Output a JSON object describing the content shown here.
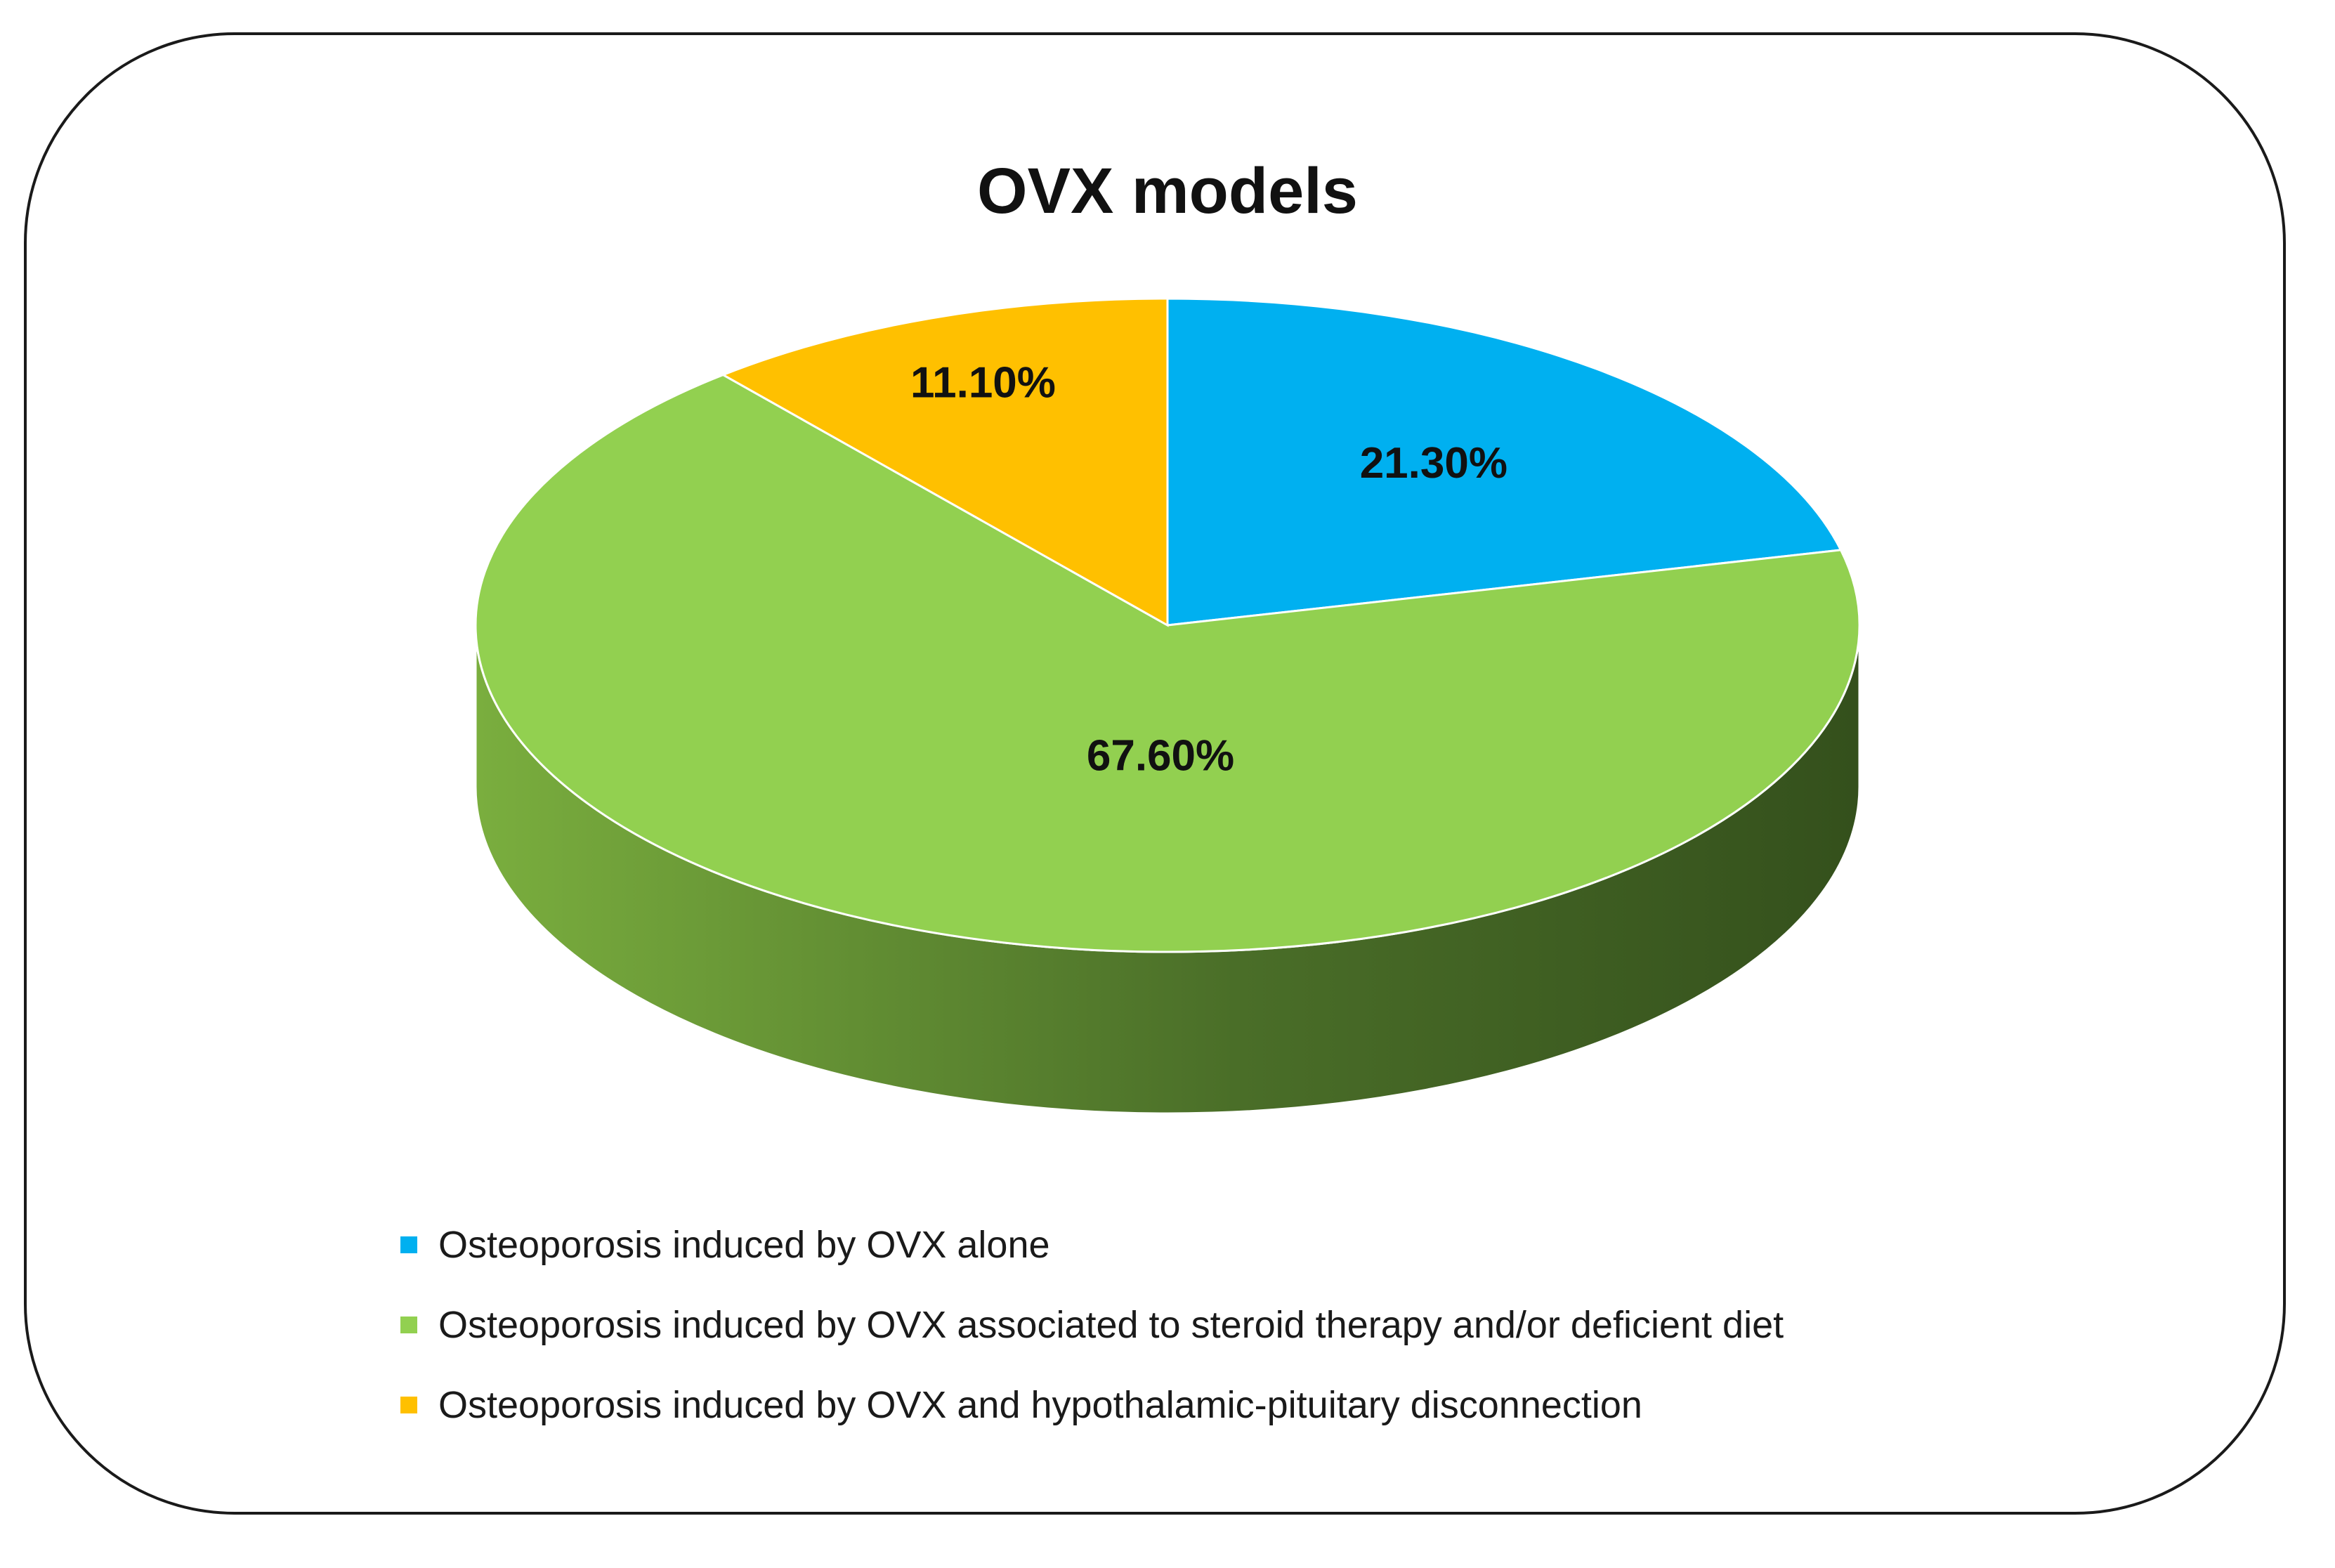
{
  "chart_data": {
    "type": "pie",
    "title": "OVX models",
    "style": "3d",
    "slices": [
      {
        "label": "Osteoporosis induced by OVX alone",
        "value": 21.3,
        "data_label": "21.30%",
        "color": "#00b0f0"
      },
      {
        "label": "Osteoporosis induced by OVX associated to steroid therapy and/or deficient diet",
        "value": 67.6,
        "data_label": "67.60%",
        "color": "#92d050"
      },
      {
        "label": "Osteoporosis induced by OVX and hypothalamic-pituitary disconnection",
        "value": 11.1,
        "data_label": "11.10%",
        "color": "#ffc000"
      }
    ],
    "legend_position": "bottom-left"
  }
}
